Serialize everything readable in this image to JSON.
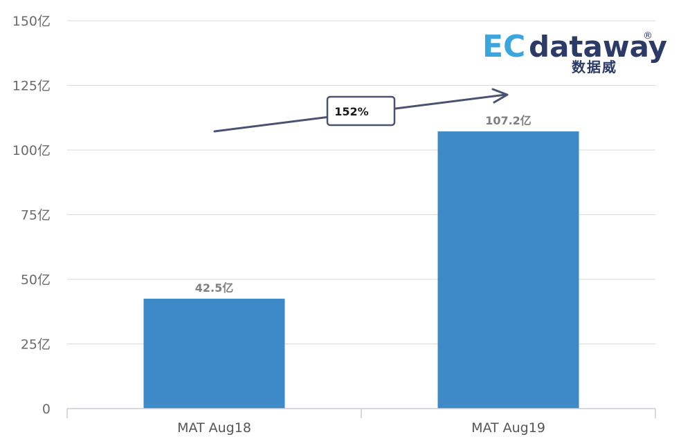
{
  "chart_data": {
    "type": "bar",
    "categories": [
      "MAT Aug18",
      "MAT Aug19"
    ],
    "values": [
      42.5,
      107.2
    ],
    "value_labels": [
      "42.5亿",
      "107.2亿"
    ],
    "ylim": [
      0,
      150
    ],
    "yticks": [
      0,
      25,
      50,
      75,
      100,
      125,
      150
    ],
    "ytick_labels": [
      "0",
      "25亿",
      "50亿",
      "75亿",
      "100亿",
      "125亿",
      "150亿"
    ],
    "grid": true,
    "bar_color": "#3e8ac8",
    "annotation": {
      "text": "152%",
      "type": "growth-arrow"
    }
  },
  "logo": {
    "ec": "EC",
    "word": "dataway",
    "cn": "数据威",
    "reg": "®",
    "ec_color": "#3aa6dd",
    "word_color": "#2b3a67"
  }
}
